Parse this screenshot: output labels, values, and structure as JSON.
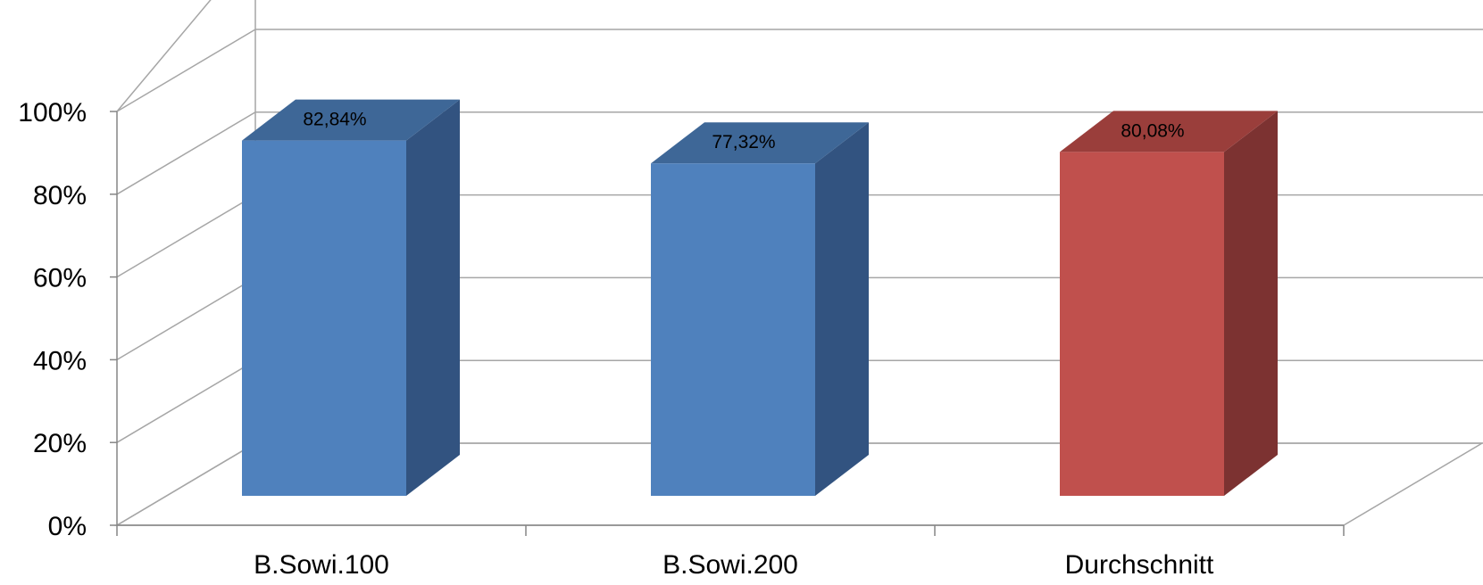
{
  "chart_data": {
    "type": "bar",
    "style": "3d-column",
    "categories": [
      "B.Sowi.100",
      "B.Sowi.200",
      "Durchschnitt"
    ],
    "values": [
      82.84,
      77.32,
      80.08
    ],
    "data_labels": [
      "82,84%",
      "77,32%",
      "80,08%"
    ],
    "ylim": [
      0,
      100
    ],
    "yticks": [
      0,
      20,
      40,
      60,
      80,
      100
    ],
    "ytick_labels": [
      "0%",
      "20%",
      "40%",
      "60%",
      "80%",
      "100%"
    ],
    "grid": true,
    "legend": "none",
    "colors": {
      "bars": [
        "#4F81BD",
        "#4F81BD",
        "#C0504D"
      ],
      "bar_tops": [
        "#3E6797",
        "#3E6797",
        "#9A3E3B"
      ],
      "bar_sides": [
        "#325380",
        "#325380",
        "#7C3231"
      ],
      "grid": "#A6A6A6",
      "axis": "#868686"
    }
  }
}
